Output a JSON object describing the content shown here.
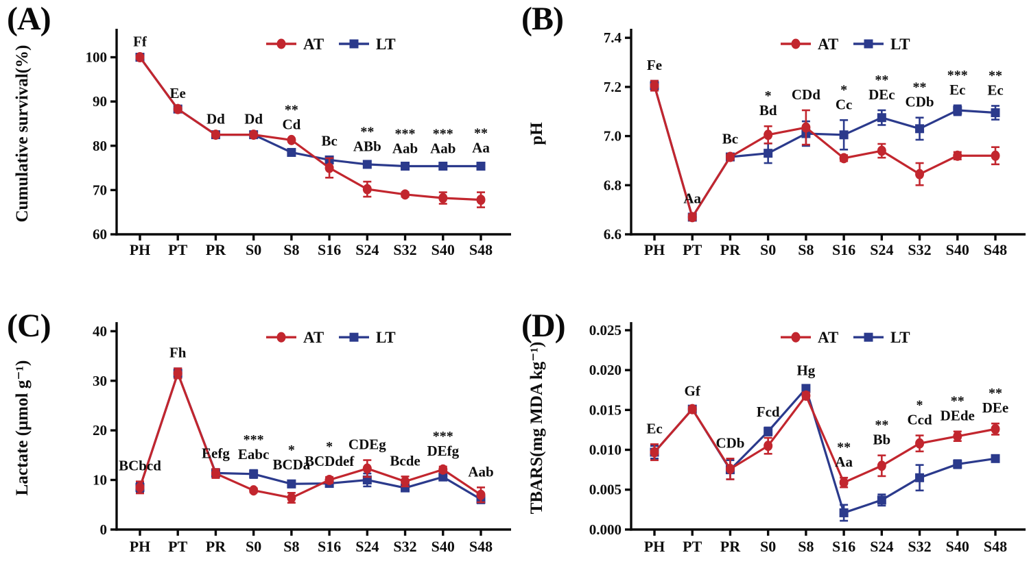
{
  "figure": {
    "series_colors": {
      "AT": "#C2262E",
      "LT": "#2B3A8C"
    },
    "legend_labels": [
      "AT",
      "LT"
    ]
  },
  "chart_data": [
    {
      "type": "line",
      "panel_label": "(A)",
      "ylabel": "Cumulative survival(%)",
      "categories": [
        "PH",
        "PT",
        "PR",
        "S0",
        "S8",
        "S16",
        "S24",
        "S32",
        "S40",
        "S48"
      ],
      "yticks": [
        60,
        70,
        80,
        90,
        100
      ],
      "ytick_labels": [
        "60",
        "70",
        "80",
        "90",
        "100"
      ],
      "ylim": [
        60,
        105.5
      ],
      "legend_position": "top-center-inside",
      "grid": false,
      "series": [
        {
          "name": "AT",
          "marker": "circle",
          "color": "#C2262E",
          "values": [
            100,
            88.3,
            82.5,
            82.5,
            81.3,
            75.0,
            70.2,
            69.0,
            68.2,
            67.8
          ],
          "errors": [
            0,
            0,
            0,
            0,
            0,
            2.2,
            1.7,
            0.5,
            1.3,
            1.7
          ]
        },
        {
          "name": "LT",
          "marker": "square",
          "color": "#2B3A8C",
          "values": [
            100,
            88.3,
            82.5,
            82.5,
            78.5,
            76.8,
            75.8,
            75.4,
            75.4,
            75.4
          ],
          "errors": [
            0,
            0,
            0,
            0,
            0.5,
            0.8,
            0.5,
            0.5,
            0.5,
            0.6
          ]
        }
      ],
      "annotations": [
        {
          "x": "PH",
          "stars": "",
          "letters": "Ff"
        },
        {
          "x": "PT",
          "stars": "",
          "letters": "Ee"
        },
        {
          "x": "PR",
          "stars": "",
          "letters": "Dd"
        },
        {
          "x": "S0",
          "stars": "",
          "letters": "Dd"
        },
        {
          "x": "S8",
          "stars": "**",
          "letters": "Cd"
        },
        {
          "x": "S16",
          "stars": "",
          "letters": "Bc"
        },
        {
          "x": "S24",
          "stars": "**",
          "letters": "ABb"
        },
        {
          "x": "S32",
          "stars": "***",
          "letters": "Aab"
        },
        {
          "x": "S40",
          "stars": "***",
          "letters": "Aab"
        },
        {
          "x": "S48",
          "stars": "**",
          "letters": "Aa"
        }
      ]
    },
    {
      "type": "line",
      "panel_label": "(B)",
      "ylabel": "pH",
      "categories": [
        "PH",
        "PT",
        "PR",
        "S0",
        "S8",
        "S16",
        "S24",
        "S32",
        "S40",
        "S48"
      ],
      "yticks": [
        6.6,
        6.8,
        7.0,
        7.2,
        7.4
      ],
      "ytick_labels": [
        "6.6",
        "6.8",
        "7.0",
        "7.2",
        "7.4"
      ],
      "ylim": [
        6.6,
        7.42
      ],
      "legend_position": "top-center-inside",
      "grid": false,
      "series": [
        {
          "name": "AT",
          "marker": "circle",
          "color": "#C2262E",
          "values": [
            7.205,
            6.67,
            6.915,
            7.005,
            7.035,
            6.91,
            6.94,
            6.845,
            6.92,
            6.92
          ],
          "errors": [
            0.02,
            0.012,
            0.01,
            0.035,
            0.07,
            0.012,
            0.028,
            0.045,
            0.015,
            0.035
          ]
        },
        {
          "name": "LT",
          "marker": "square",
          "color": "#2B3A8C",
          "values": [
            7.205,
            6.67,
            6.915,
            6.93,
            7.01,
            7.005,
            7.075,
            7.03,
            7.105,
            7.095
          ],
          "errors": [
            0.02,
            0.012,
            0.01,
            0.04,
            0.05,
            0.06,
            0.03,
            0.045,
            0.02,
            0.028
          ]
        }
      ],
      "annotations": [
        {
          "x": "PH",
          "stars": "",
          "letters": "Fe"
        },
        {
          "x": "PT",
          "stars": "",
          "letters": "Aa"
        },
        {
          "x": "PR",
          "stars": "",
          "letters": "Bc"
        },
        {
          "x": "S0",
          "stars": "*",
          "letters": "Bd"
        },
        {
          "x": "S8",
          "stars": "",
          "letters": "CDd"
        },
        {
          "x": "S16",
          "stars": "*",
          "letters": "Cc"
        },
        {
          "x": "S24",
          "stars": "**",
          "letters": "DEc"
        },
        {
          "x": "S32",
          "stars": "**",
          "letters": "CDb"
        },
        {
          "x": "S40",
          "stars": "***",
          "letters": "Ec"
        },
        {
          "x": "S48",
          "stars": "**",
          "letters": "Ec"
        }
      ]
    },
    {
      "type": "line",
      "panel_label": "(C)",
      "ylabel": "Lactate (μmol g⁻¹)",
      "categories": [
        "PH",
        "PT",
        "PR",
        "S0",
        "S8",
        "S16",
        "S24",
        "S32",
        "S40",
        "S48"
      ],
      "yticks": [
        0,
        10,
        20,
        30,
        40
      ],
      "ytick_labels": [
        "0",
        "10",
        "20",
        "30",
        "40"
      ],
      "ylim": [
        0,
        41
      ],
      "legend_position": "top-center-inside",
      "grid": false,
      "series": [
        {
          "name": "AT",
          "marker": "circle",
          "color": "#C2262E",
          "values": [
            8.5,
            31.5,
            11.3,
            7.9,
            6.4,
            10.0,
            12.3,
            9.7,
            12.1,
            7.0
          ],
          "errors": [
            1.2,
            1.0,
            0.9,
            0.4,
            1.0,
            0.6,
            1.7,
            1.0,
            0.6,
            1.5
          ]
        },
        {
          "name": "LT",
          "marker": "square",
          "color": "#2B3A8C",
          "values": [
            8.5,
            31.5,
            11.4,
            11.2,
            9.2,
            9.3,
            10.0,
            8.4,
            10.6,
            6.1
          ],
          "errors": [
            1.0,
            1.0,
            0.8,
            0.8,
            0.7,
            0.5,
            1.3,
            0.6,
            0.7,
            0.8
          ]
        }
      ],
      "annotations": [
        {
          "x": "PH",
          "stars": "",
          "letters": "BCbcd"
        },
        {
          "x": "PT",
          "stars": "",
          "letters": "Fh"
        },
        {
          "x": "PR",
          "stars": "",
          "letters": "Eefg"
        },
        {
          "x": "S0",
          "stars": "***",
          "letters": "Eabc"
        },
        {
          "x": "S8",
          "stars": "*",
          "letters": "BCDa"
        },
        {
          "x": "S16",
          "stars": "*",
          "letters": "BCDdef"
        },
        {
          "x": "S24",
          "stars": "",
          "letters": "CDEg"
        },
        {
          "x": "S32",
          "stars": "",
          "letters": "Bcde"
        },
        {
          "x": "S40",
          "stars": "***",
          "letters": "DEfg"
        },
        {
          "x": "S48",
          "stars": "",
          "letters": "Aab"
        }
      ]
    },
    {
      "type": "line",
      "panel_label": "(D)",
      "ylabel": "TBARS(mg MDA kg⁻¹)",
      "categories": [
        "PH",
        "PT",
        "PR",
        "S0",
        "S8",
        "S16",
        "S24",
        "S32",
        "S40",
        "S48"
      ],
      "yticks": [
        0.0,
        0.005,
        0.01,
        0.015,
        0.02,
        0.025
      ],
      "ytick_labels": [
        "0.000",
        "0.005",
        "0.010",
        "0.015",
        "0.020",
        "0.025"
      ],
      "ylim": [
        0,
        0.0255
      ],
      "legend_position": "top-center-inside",
      "grid": false,
      "series": [
        {
          "name": "AT",
          "marker": "circle",
          "color": "#C2262E",
          "values": [
            0.0097,
            0.0151,
            0.0076,
            0.0105,
            0.0168,
            0.0059,
            0.008,
            0.0108,
            0.0117,
            0.0126
          ],
          "errors": [
            0.001,
            0.0003,
            0.0013,
            0.001,
            0.0004,
            0.0006,
            0.0013,
            0.001,
            0.0006,
            0.0007
          ]
        },
        {
          "name": "LT",
          "marker": "square",
          "color": "#2B3A8C",
          "values": [
            0.0097,
            0.0151,
            0.0075,
            0.0123,
            0.0177,
            0.0021,
            0.0037,
            0.0065,
            0.0082,
            0.0089
          ],
          "errors": [
            0.0008,
            0.0003,
            0.0012,
            0.0005,
            0.0003,
            0.001,
            0.0007,
            0.0016,
            0.0005,
            0.0004
          ]
        }
      ],
      "annotations": [
        {
          "x": "PH",
          "stars": "",
          "letters": "Ec"
        },
        {
          "x": "PT",
          "stars": "",
          "letters": "Gf"
        },
        {
          "x": "PR",
          "stars": "",
          "letters": "CDb"
        },
        {
          "x": "S0",
          "stars": "",
          "letters": "Fcd"
        },
        {
          "x": "S8",
          "stars": "",
          "letters": "Hg"
        },
        {
          "x": "S16",
          "stars": "**",
          "letters": "Aa"
        },
        {
          "x": "S24",
          "stars": "**",
          "letters": "Bb"
        },
        {
          "x": "S32",
          "stars": "*",
          "letters": "Ccd"
        },
        {
          "x": "S40",
          "stars": "**",
          "letters": "DEde"
        },
        {
          "x": "S48",
          "stars": "**",
          "letters": "DEe"
        }
      ]
    }
  ]
}
